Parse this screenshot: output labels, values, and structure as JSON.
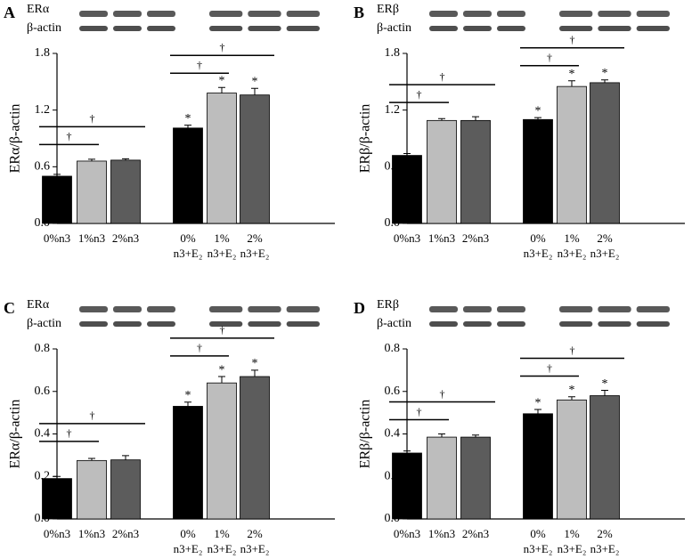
{
  "chart_data": [
    {
      "type": "bar",
      "label": "A",
      "blot_labels": [
        "ERα",
        "β-actin"
      ],
      "ylabel": "ERα/β-actin",
      "categories": [
        "0%n3",
        "1%n3",
        "2%n3",
        "0%\nn3+E₂",
        "1%\nn3+E₂",
        "2%\nn3+E₂"
      ],
      "values": [
        0.5,
        0.66,
        0.67,
        1.01,
        1.38,
        1.36
      ],
      "errors": [
        0.02,
        0.02,
        0.015,
        0.03,
        0.06,
        0.07
      ],
      "colors": [
        "#000000",
        "#bdbdbd",
        "#5c5c5c",
        "#000000",
        "#bdbdbd",
        "#5c5c5c"
      ],
      "significant": [
        false,
        false,
        false,
        true,
        true,
        true
      ],
      "star": "*",
      "brackets": [
        {
          "from": 0,
          "to": 1,
          "label": "†"
        },
        {
          "from": 0,
          "to": 2,
          "label": "†"
        },
        {
          "from": 3,
          "to": 4,
          "label": "†"
        },
        {
          "from": 3,
          "to": 5,
          "label": "†"
        }
      ],
      "ylim": [
        0,
        1.8
      ],
      "yticks": [
        {
          "value": 0,
          "label": "0.0"
        },
        0.6,
        1.2,
        1.8
      ]
    },
    {
      "type": "bar",
      "label": "B",
      "blot_labels": [
        "ERβ",
        "β-actin"
      ],
      "ylabel": "ERβ/β-actin",
      "categories": [
        "0%n3",
        "1%n3",
        "2%n3",
        "0%\nn3+E₂",
        "1%\nn3+E₂",
        "2%\nn3+E₂"
      ],
      "values": [
        0.72,
        1.09,
        1.09,
        1.1,
        1.45,
        1.49
      ],
      "errors": [
        0.02,
        0.02,
        0.04,
        0.02,
        0.06,
        0.03
      ],
      "colors": [
        "#000000",
        "#bdbdbd",
        "#5c5c5c",
        "#000000",
        "#bdbdbd",
        "#5c5c5c"
      ],
      "significant": [
        false,
        false,
        false,
        true,
        true,
        true
      ],
      "star": "*",
      "brackets": [
        {
          "from": 0,
          "to": 1,
          "label": "†"
        },
        {
          "from": 0,
          "to": 2,
          "label": "†"
        },
        {
          "from": 3,
          "to": 4,
          "label": "†"
        },
        {
          "from": 3,
          "to": 5,
          "label": "†"
        }
      ],
      "ylim": [
        0,
        1.8
      ],
      "yticks": [
        {
          "value": 0,
          "label": "0.0"
        },
        0.6,
        1.2,
        1.8
      ]
    },
    {
      "type": "bar",
      "label": "C",
      "blot_labels": [
        "ERα",
        "β-actin"
      ],
      "ylabel": "ERα/β-actin",
      "categories": [
        "0%n3",
        "1%n3",
        "2%n3",
        "0%\nn3+E₂",
        "1%\nn3+E₂",
        "2%\nn3+E₂"
      ],
      "values": [
        0.19,
        0.275,
        0.278,
        0.53,
        0.64,
        0.67
      ],
      "errors": [
        0.01,
        0.01,
        0.02,
        0.02,
        0.03,
        0.03
      ],
      "colors": [
        "#000000",
        "#bdbdbd",
        "#5c5c5c",
        "#000000",
        "#bdbdbd",
        "#5c5c5c"
      ],
      "significant": [
        false,
        false,
        false,
        true,
        true,
        true
      ],
      "star": "*",
      "brackets": [
        {
          "from": 0,
          "to": 1,
          "label": "†"
        },
        {
          "from": 0,
          "to": 2,
          "label": "†"
        },
        {
          "from": 3,
          "to": 4,
          "label": "†"
        },
        {
          "from": 3,
          "to": 5,
          "label": "†"
        }
      ],
      "ylim": [
        0,
        0.8
      ],
      "yticks": [
        {
          "value": 0,
          "label": "0.0"
        },
        0.2,
        0.4,
        0.6,
        0.8
      ]
    },
    {
      "type": "bar",
      "label": "D",
      "blot_labels": [
        "ERβ",
        "β-actin"
      ],
      "ylabel": "ERβ/β-actin",
      "categories": [
        "0%n3",
        "1%n3",
        "2%n3",
        "0%\nn3+E₂",
        "1%\nn3+E₂",
        "2%\nn3+E₂"
      ],
      "values": [
        0.31,
        0.385,
        0.385,
        0.495,
        0.56,
        0.58
      ],
      "errors": [
        0.01,
        0.015,
        0.01,
        0.02,
        0.015,
        0.025
      ],
      "colors": [
        "#000000",
        "#bdbdbd",
        "#5c5c5c",
        "#000000",
        "#bdbdbd",
        "#5c5c5c"
      ],
      "significant": [
        false,
        false,
        false,
        true,
        true,
        true
      ],
      "star": "*",
      "brackets": [
        {
          "from": 0,
          "to": 1,
          "label": "†"
        },
        {
          "from": 0,
          "to": 2,
          "label": "†"
        },
        {
          "from": 3,
          "to": 4,
          "label": "†"
        },
        {
          "from": 3,
          "to": 5,
          "label": "†"
        }
      ],
      "ylim": [
        0,
        0.8
      ],
      "yticks": [
        {
          "value": 0,
          "label": "0.0"
        },
        0.2,
        0.4,
        0.6,
        0.8
      ]
    }
  ]
}
